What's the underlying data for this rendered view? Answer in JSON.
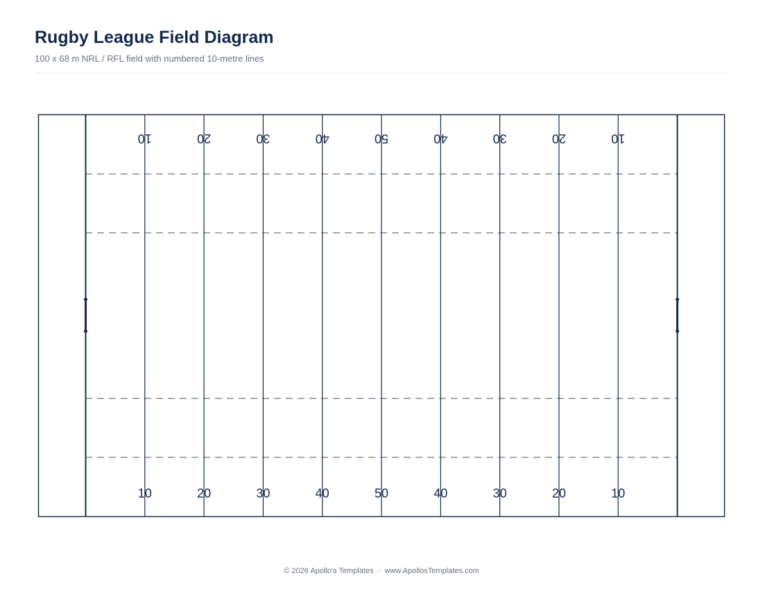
{
  "header": {
    "title": "Rugby League Field Diagram",
    "subtitle": "100 x 68 m NRL / RFL field with numbered 10-metre lines"
  },
  "field": {
    "line_labels": [
      "10",
      "20",
      "30",
      "40",
      "50",
      "40",
      "30",
      "20",
      "10"
    ]
  },
  "footer": {
    "text": "© 2026 Apollo's Templates  ·  www.ApollosTemplates.com"
  }
}
